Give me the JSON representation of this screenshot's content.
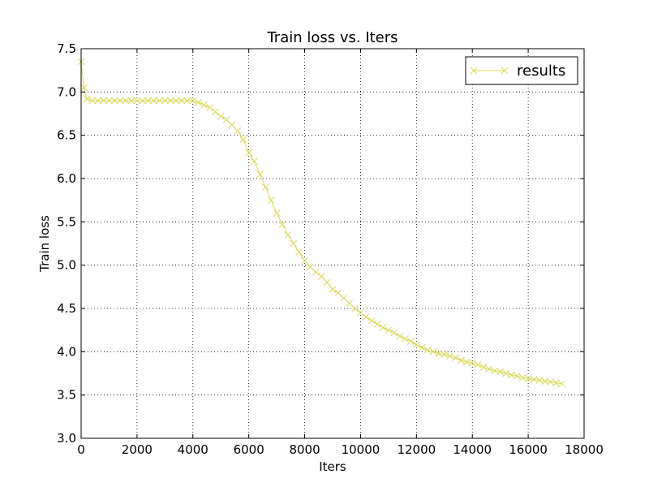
{
  "chart_data": {
    "type": "line",
    "title": "Train loss  vs. Iters",
    "xlabel": "Iters",
    "ylabel": "Train loss",
    "xlim": [
      0,
      18000
    ],
    "ylim": [
      3.0,
      7.5
    ],
    "xticks": [
      0,
      2000,
      4000,
      6000,
      8000,
      10000,
      12000,
      14000,
      16000,
      18000
    ],
    "yticks": [
      3.0,
      3.5,
      4.0,
      4.5,
      5.0,
      5.5,
      6.0,
      6.5,
      7.0,
      7.5
    ],
    "xtick_labels": [
      "0",
      "2000",
      "4000",
      "6000",
      "8000",
      "10000",
      "12000",
      "14000",
      "16000",
      "18000"
    ],
    "ytick_labels": [
      "3.0",
      "3.5",
      "4.0",
      "4.5",
      "5.0",
      "5.5",
      "6.0",
      "6.5",
      "7.0",
      "7.5"
    ],
    "grid": true,
    "legend_position": "top-right",
    "series": [
      {
        "name": "results",
        "color": "#d9d95a",
        "marker": "x",
        "x": [
          0,
          100,
          200,
          400,
          600,
          800,
          1000,
          1200,
          1400,
          1600,
          1800,
          2000,
          2200,
          2400,
          2600,
          2800,
          3000,
          3200,
          3400,
          3600,
          3800,
          4000,
          4200,
          4400,
          4600,
          4800,
          5000,
          5200,
          5400,
          5600,
          5800,
          6000,
          6200,
          6400,
          6600,
          6800,
          7000,
          7200,
          7400,
          7600,
          7800,
          8000,
          8200,
          8400,
          8600,
          8800,
          9000,
          9200,
          9400,
          9600,
          9800,
          10000,
          10200,
          10400,
          10600,
          10800,
          11000,
          11200,
          11400,
          11600,
          11800,
          12000,
          12200,
          12400,
          12600,
          12800,
          13000,
          13200,
          13400,
          13600,
          13800,
          14000,
          14200,
          14400,
          14600,
          14800,
          15000,
          15200,
          15400,
          15600,
          15800,
          16000,
          16200,
          16400,
          16600,
          16800,
          17000,
          17200
        ],
        "y": [
          7.35,
          7.05,
          6.92,
          6.9,
          6.9,
          6.9,
          6.9,
          6.9,
          6.9,
          6.9,
          6.9,
          6.9,
          6.9,
          6.9,
          6.9,
          6.9,
          6.9,
          6.9,
          6.9,
          6.9,
          6.9,
          6.9,
          6.88,
          6.85,
          6.82,
          6.77,
          6.72,
          6.68,
          6.62,
          6.55,
          6.45,
          6.3,
          6.2,
          6.05,
          5.9,
          5.75,
          5.6,
          5.47,
          5.35,
          5.25,
          5.15,
          5.05,
          4.98,
          4.92,
          4.87,
          4.8,
          4.72,
          4.68,
          4.62,
          4.56,
          4.5,
          4.45,
          4.4,
          4.36,
          4.32,
          4.28,
          4.25,
          4.22,
          4.18,
          4.15,
          4.12,
          4.08,
          4.05,
          4.02,
          4.0,
          3.98,
          3.97,
          3.95,
          3.93,
          3.9,
          3.88,
          3.87,
          3.85,
          3.82,
          3.8,
          3.78,
          3.77,
          3.75,
          3.73,
          3.72,
          3.7,
          3.69,
          3.68,
          3.67,
          3.66,
          3.65,
          3.64,
          3.63
        ]
      }
    ]
  }
}
